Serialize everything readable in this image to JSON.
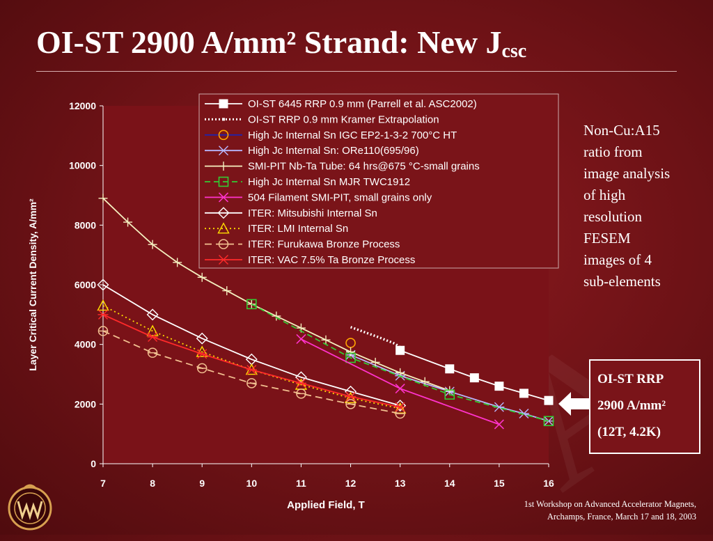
{
  "title": {
    "main": "OI-ST 2900 A/mm² Strand: New J",
    "sub": "csc"
  },
  "note_lines": [
    "Non-Cu:A15",
    "ratio from",
    "image analysis",
    "of high",
    "resolution",
    "FESEM",
    "images of 4",
    "sub-elements"
  ],
  "callout": {
    "line1": "OI-ST RRP",
    "line2": "2900 A/mm²",
    "line3": "(12T, 4.2K)"
  },
  "footer": {
    "line1": "1st Workshop on Advanced Accelerator Magnets,",
    "line2": "Archamps, France, March 17 and 18, 2003"
  },
  "colors": {
    "background": "#6d1216",
    "legend_bg": "#7a1419",
    "plot_bg": "#7a1218"
  },
  "icons": {
    "logo": "workshop-logo-icon",
    "arrow": "arrow-left-icon"
  },
  "chart_data": {
    "type": "line",
    "xlabel": "Applied Field, T",
    "ylabel": "Layer Critical Current Density, A/mm²",
    "xlim": [
      7,
      16
    ],
    "ylim": [
      0,
      12000
    ],
    "xticks": [
      "7",
      "8",
      "9",
      "10",
      "11",
      "12",
      "13",
      "14",
      "15",
      "16"
    ],
    "yticks": [
      "0",
      "2000",
      "4000",
      "6000",
      "8000",
      "10000",
      "12000"
    ],
    "grid": false,
    "legend_position": "top-right",
    "series": [
      {
        "name": "OI-ST 6445 RRP 0.9 mm (Parrell et al. ASC2002)",
        "color": "#ffffff",
        "dash": "",
        "marker": "square-filled",
        "x": [
          13,
          14,
          14.5,
          15,
          15.5,
          16
        ],
        "y": [
          3800,
          3180,
          2880,
          2600,
          2360,
          2120
        ]
      },
      {
        "name": "OI-ST RRP 0.9 mm Kramer Extrapolation",
        "color": "#ffffff",
        "dash": "2 3",
        "marker": "none",
        "x": [
          12,
          12.3,
          12.6,
          12.9,
          13
        ],
        "y": [
          4580,
          4400,
          4220,
          4020,
          3900
        ]
      },
      {
        "name": "High Jc Internal Sn IGC EP2-1-3-2 700°C HT",
        "color": "#2222aa",
        "dash": "",
        "marker": "circle-orange",
        "x": [
          12
        ],
        "y": [
          4050
        ]
      },
      {
        "name": "High Jc Internal Sn: ORe110(695/96)",
        "color": "#b8b8ff",
        "dash": "",
        "marker": "asterisk",
        "x": [
          12,
          13,
          14,
          15,
          15.5,
          16
        ],
        "y": [
          3650,
          2950,
          2420,
          1900,
          1680,
          1430
        ]
      },
      {
        "name": "SMI-PIT Nb-Ta Tube: 64 hrs@675 °C-small grains",
        "color": "#f5f0c0",
        "dash": "",
        "marker": "plus",
        "x": [
          7,
          7.5,
          8,
          8.5,
          9,
          9.5,
          10,
          10.5,
          11,
          11.5,
          12,
          12.5,
          13,
          13.5,
          14
        ],
        "y": [
          8900,
          8100,
          7350,
          6750,
          6250,
          5800,
          5350,
          4950,
          4550,
          4150,
          3750,
          3400,
          3050,
          2750,
          2450
        ]
      },
      {
        "name": "High Jc Internal Sn MJR TWC1912",
        "color": "#33cc33",
        "dash": "8 5",
        "marker": "square-green",
        "x": [
          10,
          12,
          14,
          16
        ],
        "y": [
          5350,
          3550,
          2320,
          1430
        ]
      },
      {
        "name": "504 Filament SMI-PIT, small grains only",
        "color": "#ff33cc",
        "dash": "",
        "marker": "x-magenta",
        "x": [
          11,
          13,
          15
        ],
        "y": [
          4180,
          2520,
          1320
        ]
      },
      {
        "name": "ITER: Mitsubishi Internal Sn",
        "color": "#ffffff",
        "dash": "",
        "marker": "diamond",
        "x": [
          7,
          8,
          9,
          10,
          11,
          12,
          13
        ],
        "y": [
          6000,
          5000,
          4200,
          3500,
          2900,
          2420,
          1950
        ]
      },
      {
        "name": "ITER: LMI Internal Sn",
        "color": "#ffdd00",
        "dash": "2 4",
        "marker": "triangle",
        "x": [
          7,
          8,
          9,
          10,
          11,
          12,
          13
        ],
        "y": [
          5300,
          4450,
          3750,
          3150,
          2650,
          2200,
          1850
        ]
      },
      {
        "name": "ITER: Furukawa Bronze Process",
        "color": "#f2c090",
        "dash": "10 6",
        "marker": "circle-tan",
        "x": [
          7,
          8,
          9,
          10,
          11,
          12,
          13
        ],
        "y": [
          4450,
          3720,
          3200,
          2700,
          2350,
          2000,
          1680
        ]
      },
      {
        "name": "ITER: VAC 7.5% Ta Bronze Process",
        "color": "#ff2a2a",
        "dash": "",
        "marker": "asterisk-red",
        "x": [
          7,
          8,
          9,
          10,
          11,
          12,
          13
        ],
        "y": [
          5000,
          4250,
          3680,
          3150,
          2700,
          2250,
          1900
        ]
      }
    ]
  }
}
